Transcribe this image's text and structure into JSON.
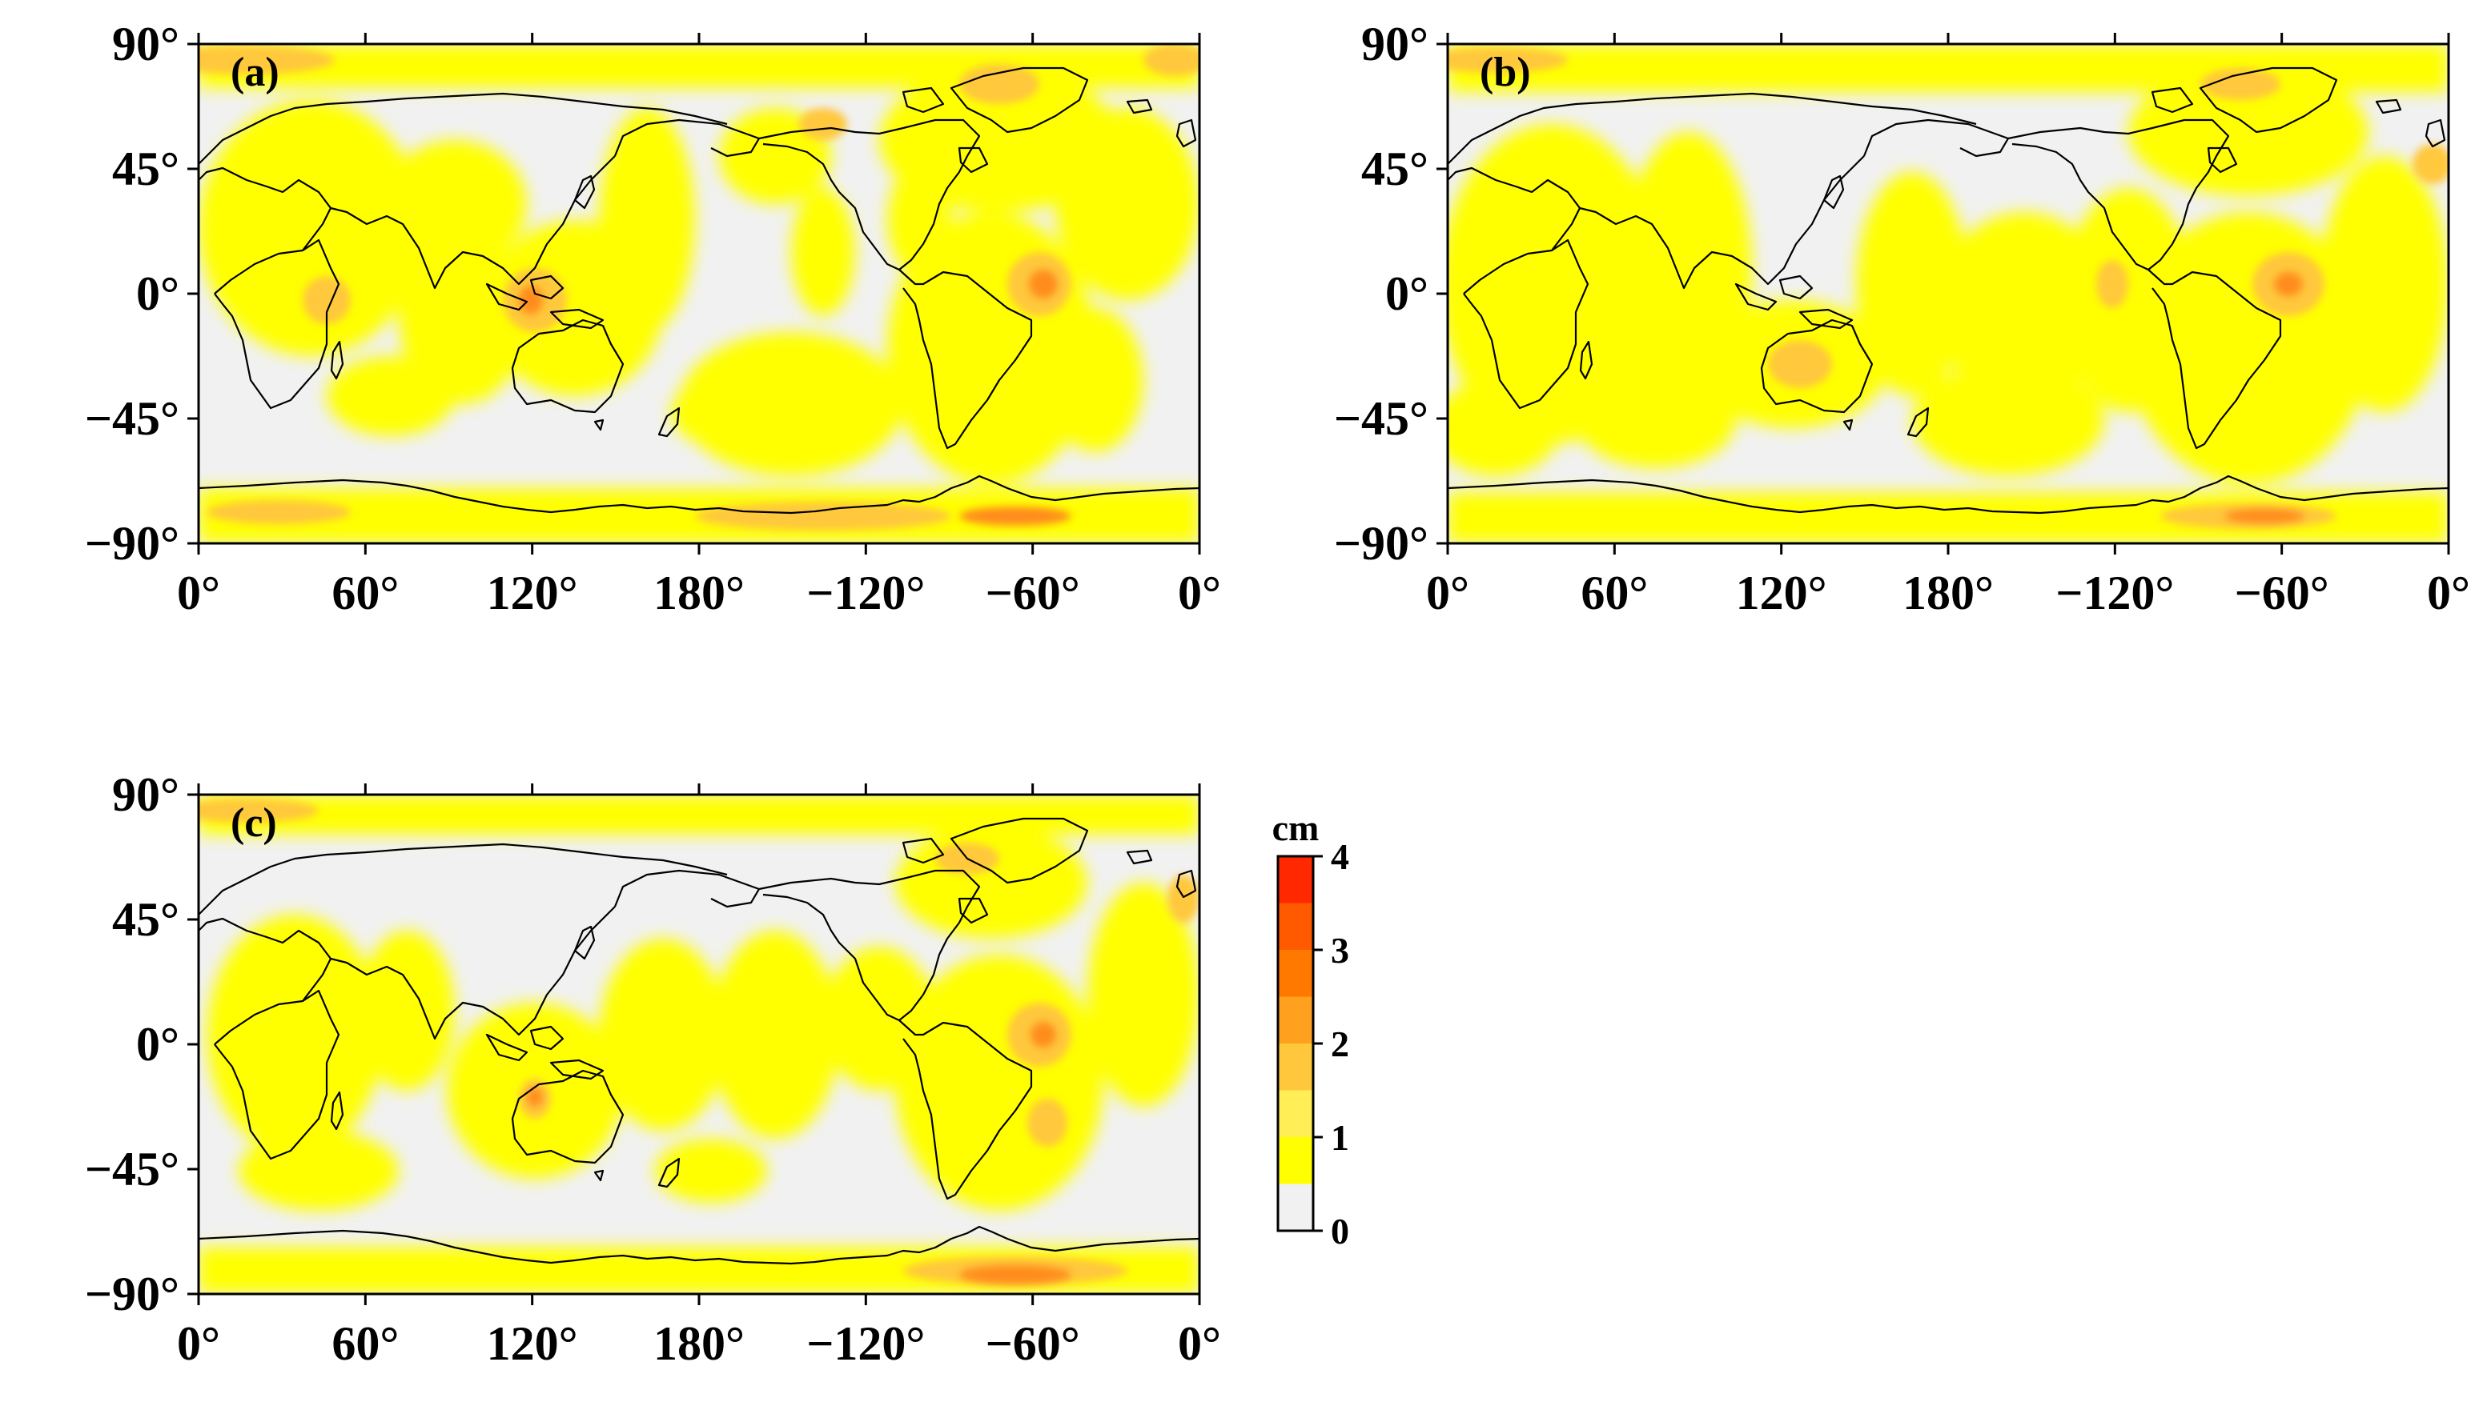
{
  "figure": {
    "panels": [
      {
        "label": "(a)"
      },
      {
        "label": "(b)"
      },
      {
        "label": "(c)"
      }
    ],
    "lat_ticks": [
      "90°",
      "45°",
      "0°",
      "−45°",
      "−90°"
    ],
    "lon_ticks": [
      "0°",
      "60°",
      "120°",
      "180°",
      "−120°",
      "−60°",
      "0°"
    ],
    "colorbar": {
      "unit": "cm",
      "ticks": [
        "4",
        "3",
        "2",
        "1",
        "0"
      ],
      "levels": [
        {
          "from": 0,
          "to": 0.5,
          "color": "#f1f1f1"
        },
        {
          "from": 0.5,
          "to": 1.0,
          "color": "#ffff00"
        },
        {
          "from": 1.0,
          "to": 1.5,
          "color": "#ffee55"
        },
        {
          "from": 1.5,
          "to": 2.0,
          "color": "#ffc83c"
        },
        {
          "from": 2.0,
          "to": 2.5,
          "color": "#ffa01e"
        },
        {
          "from": 2.5,
          "to": 3.0,
          "color": "#ff7800"
        },
        {
          "from": 3.0,
          "to": 3.5,
          "color": "#ff5a00"
        },
        {
          "from": 3.5,
          "to": 4.0,
          "color": "#ff2800"
        }
      ]
    },
    "colors": {
      "ocean_background": "#f1f1f1",
      "level_1": "#ffff00",
      "level_2": "#ffc83c",
      "level_3": "#ff8c1e",
      "coastline": "#000000"
    }
  }
}
